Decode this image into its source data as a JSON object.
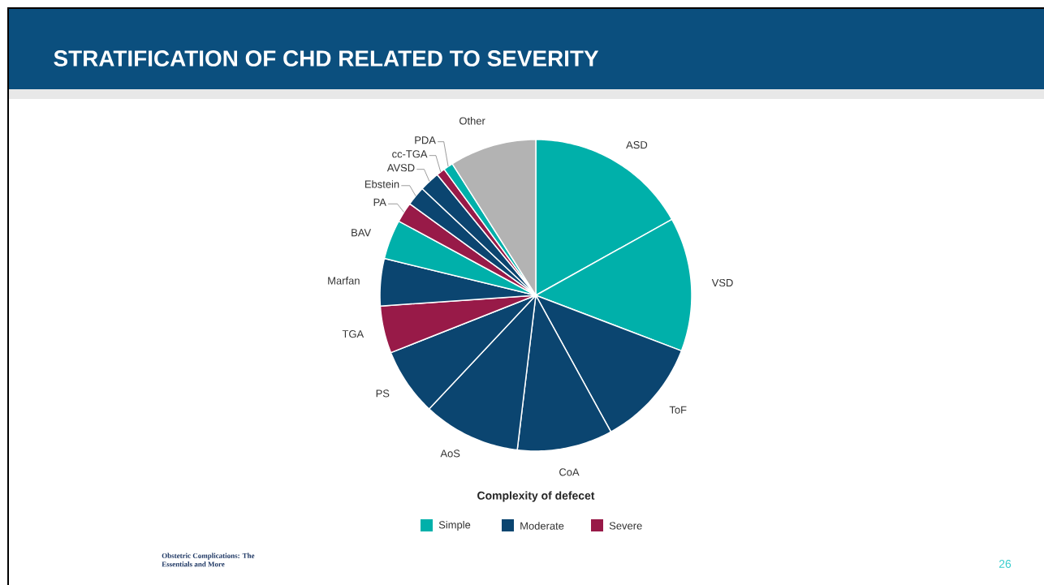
{
  "chart_data": {
    "type": "pie",
    "title": "STRATIFICATION OF CHD RELATED TO SEVERITY",
    "categories": [
      "ASD",
      "VSD",
      "ToF",
      "CoA",
      "AoS",
      "PS",
      "TGA",
      "Marfan",
      "BAV",
      "PA",
      "Ebstein",
      "AVSD",
      "cc-TGA",
      "PDA",
      "Other"
    ],
    "values": [
      16.9,
      13.9,
      11.2,
      9.9,
      10.1,
      7.0,
      4.9,
      4.9,
      4.1,
      2.1,
      2.0,
      2.1,
      0.9,
      1.0,
      9.0
    ],
    "colors": [
      "#00b0aa",
      "#00b0aa",
      "#0b4570",
      "#0b4570",
      "#0b4570",
      "#0b4570",
      "#981a48",
      "#0b4570",
      "#00b0aa",
      "#981a48",
      "#0b4570",
      "#0b4570",
      "#981a48",
      "#00b0aa",
      "#b3b3b3"
    ],
    "legend_title": "Complexity of defecet",
    "annotations": [
      "Simple",
      "Moderate",
      "Severe",
      "Obstetric Complications: The Essentials and More",
      "26"
    ]
  }
}
